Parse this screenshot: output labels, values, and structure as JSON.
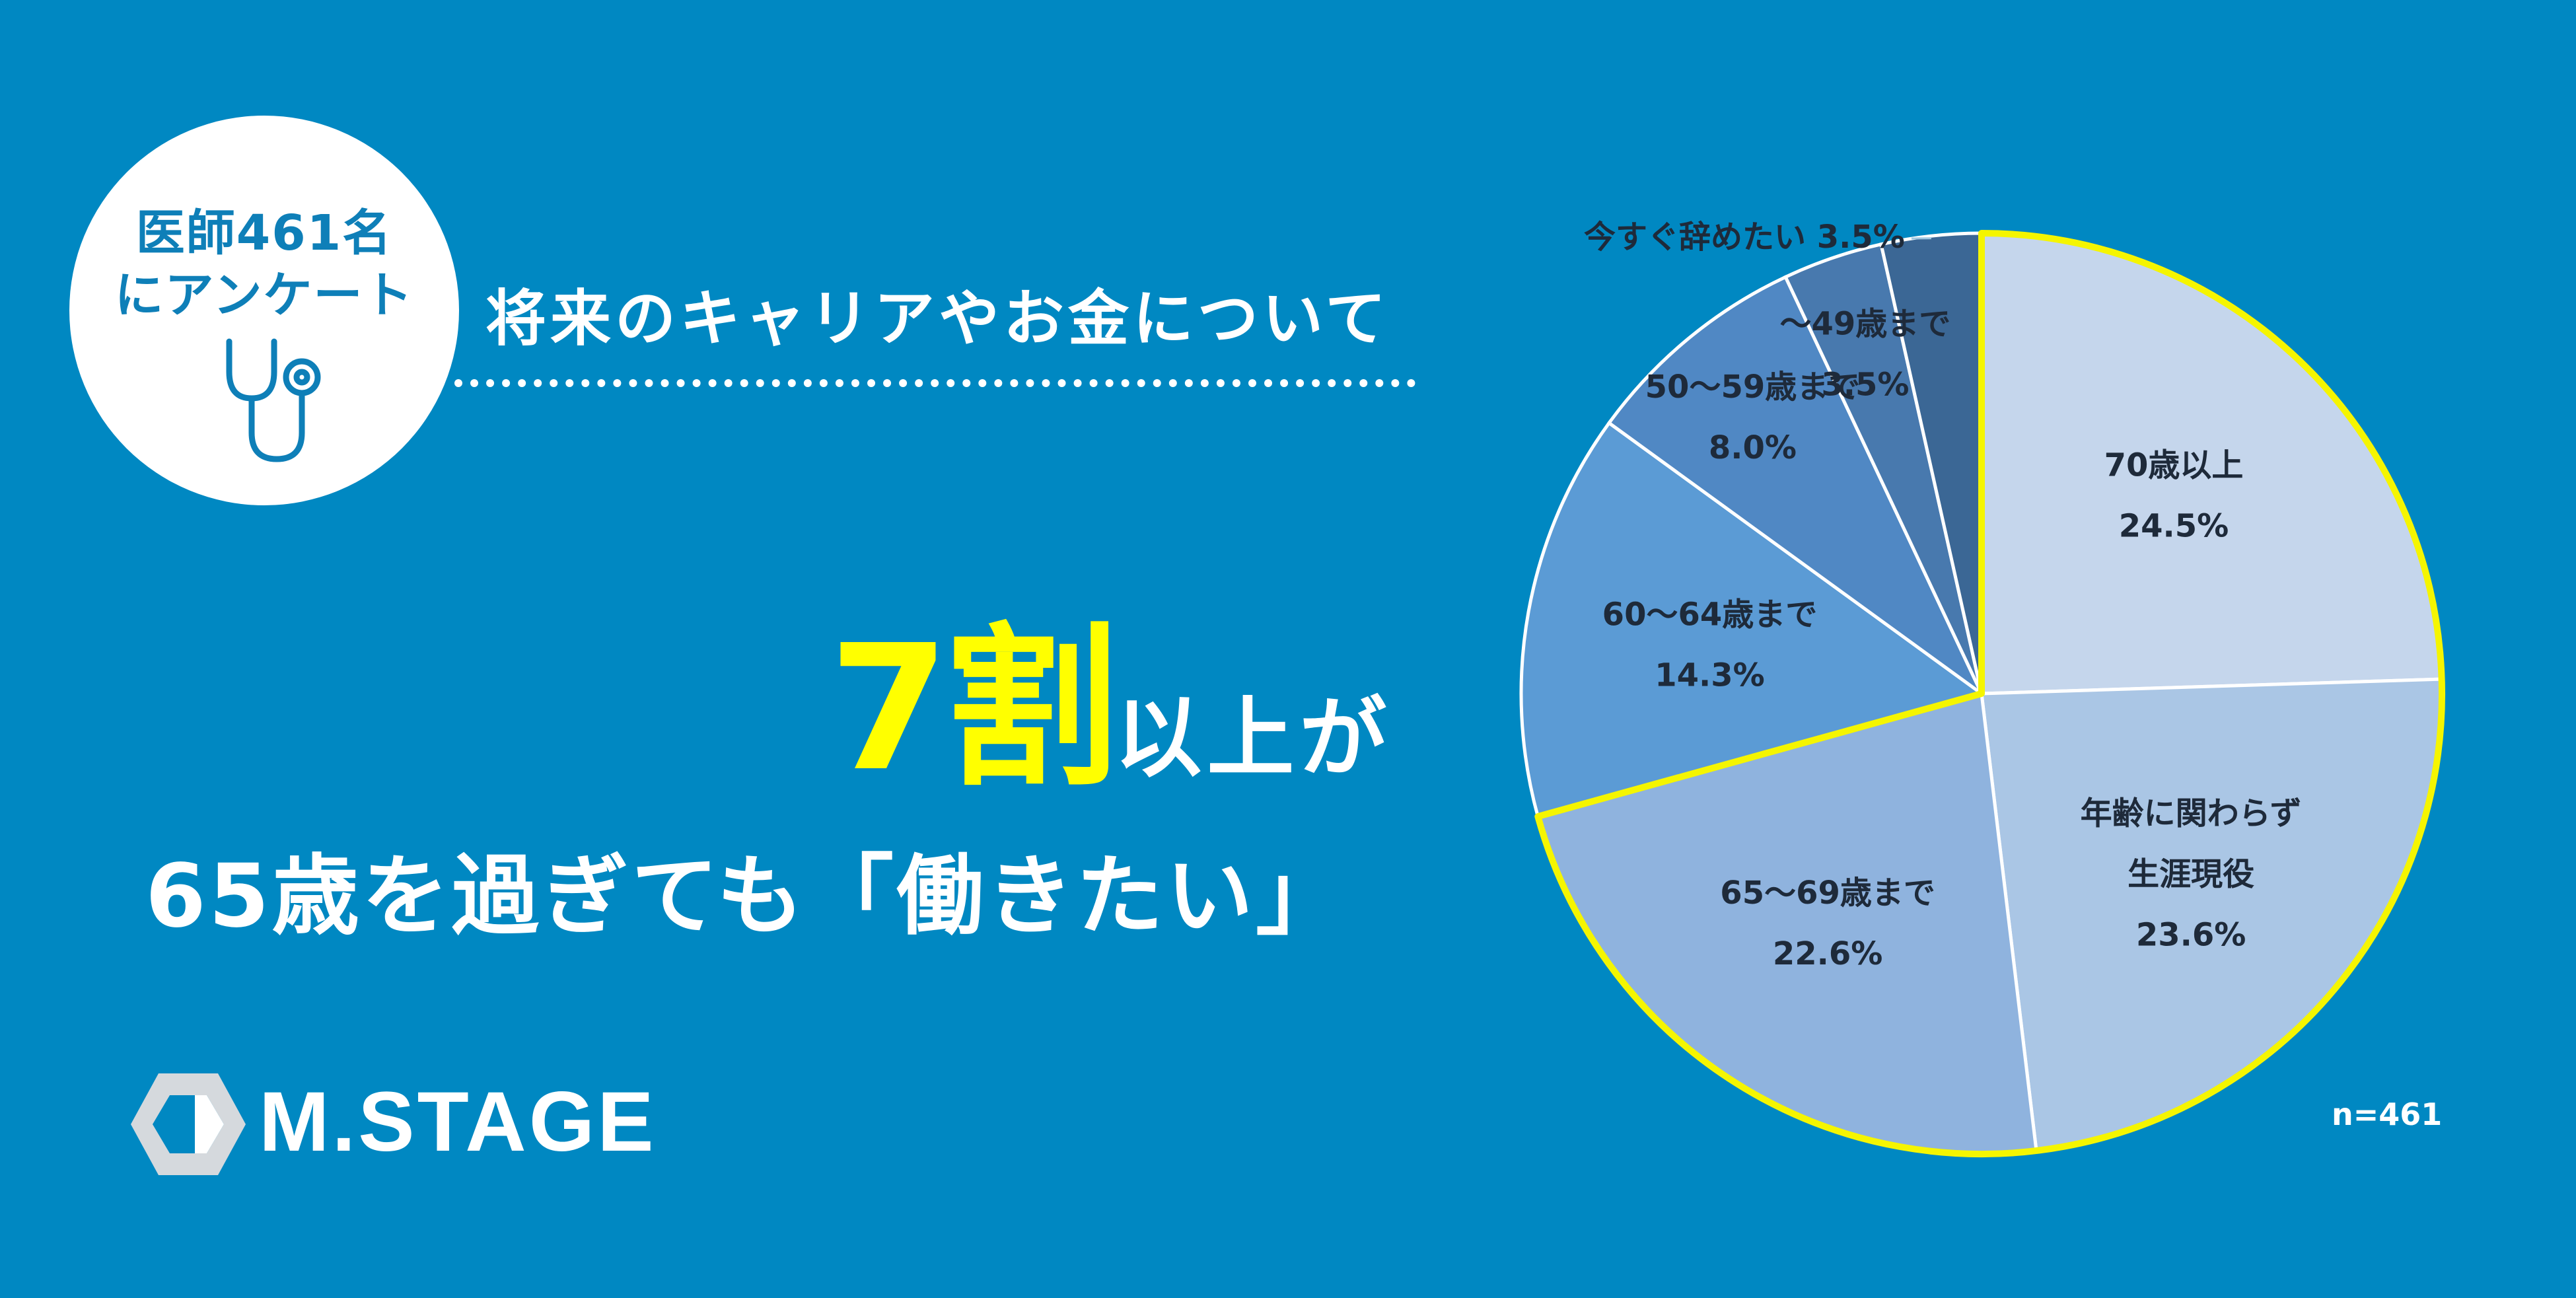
{
  "badge": {
    "line1": "医師461名",
    "line2": "にアンケート",
    "icon": "stethoscope-icon"
  },
  "subtitle": "将来のキャリアやお金について",
  "headline": {
    "highlight": "7割",
    "rest": "以上が"
  },
  "subline": "65歳を過ぎても「働きたい」",
  "logo": {
    "text": "M.STAGE",
    "icon": "hexagon-logo-icon"
  },
  "sample_note": "n=461",
  "chart_data": {
    "type": "pie",
    "start_angle_deg": 0,
    "direction": "clockwise",
    "slices": [
      {
        "lines": [
          "70歳以上"
        ],
        "value": 24.5,
        "value_label": "24.5%",
        "color": "#c5d6ec",
        "highlight": true
      },
      {
        "lines": [
          "年齢に関わらず",
          "生涯現役"
        ],
        "value": 23.6,
        "value_label": "23.6%",
        "color": "#aac6e5",
        "highlight": true
      },
      {
        "lines": [
          "65〜69歳まで"
        ],
        "value": 22.6,
        "value_label": "22.6%",
        "color": "#8fb3de",
        "highlight": true
      },
      {
        "lines": [
          "60〜64歳まで"
        ],
        "value": 14.3,
        "value_label": "14.3%",
        "color": "#5b9bd5",
        "highlight": false
      },
      {
        "lines": [
          "50〜59歳まで"
        ],
        "value": 8.0,
        "value_label": "8.0%",
        "color": "#5088c4",
        "highlight": false
      },
      {
        "lines": [
          "〜49歳まで"
        ],
        "value": 3.5,
        "value_label": "3.5%",
        "color": "#4879ae",
        "highlight": false
      },
      {
        "lines": [
          "今すぐ辞めたい"
        ],
        "value": 3.5,
        "value_label": "3.5%",
        "color": "#3b6795",
        "highlight": false
      }
    ],
    "colors": {
      "edge": "#ffffff",
      "highlight_outline": "#f5f500",
      "label_text": "#1e2a3a"
    }
  }
}
